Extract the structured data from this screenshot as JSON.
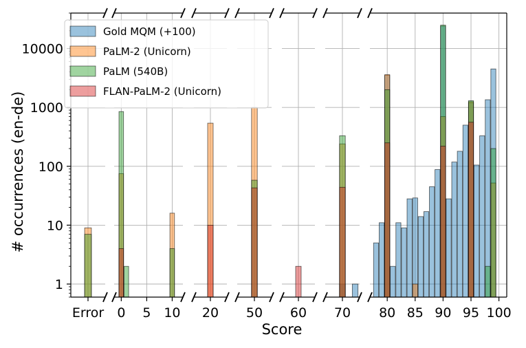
{
  "chart_data": {
    "type": "bar",
    "ylabel": "# occurrences (en-de)",
    "xlabel": "Score",
    "y_scale": "log",
    "grid": true,
    "legend_position": "top-left",
    "ylim": [
      0.6,
      40000
    ],
    "y_ticks": [
      {
        "v": 1,
        "label": "1"
      },
      {
        "v": 10,
        "label": "10"
      },
      {
        "v": 100,
        "label": "100"
      },
      {
        "v": 1000,
        "label": "1000"
      },
      {
        "v": 10000,
        "label": "10000"
      }
    ],
    "panels": [
      {
        "range": [
          -1.4,
          1.4
        ],
        "ticks": [
          {
            "v": 0,
            "label": "Error"
          }
        ]
      },
      {
        "range": [
          -1.4,
          12.1
        ],
        "ticks": [
          {
            "v": 0,
            "label": "0"
          },
          {
            "v": 5,
            "label": "5"
          },
          {
            "v": 10,
            "label": "10"
          }
        ]
      },
      {
        "range": [
          17.3,
          22.7
        ],
        "ticks": [
          {
            "v": 20,
            "label": "20"
          }
        ]
      },
      {
        "range": [
          47.3,
          52.7
        ],
        "ticks": [
          {
            "v": 50,
            "label": "50"
          }
        ]
      },
      {
        "range": [
          57.3,
          62.7
        ],
        "ticks": [
          {
            "v": 60,
            "label": "60"
          }
        ]
      },
      {
        "range": [
          67.3,
          72.7
        ],
        "ticks": [
          {
            "v": 70,
            "label": "70"
          }
        ]
      },
      {
        "range": [
          76.9,
          101.4
        ],
        "ticks": [
          {
            "v": 80,
            "label": "80"
          },
          {
            "v": 85,
            "label": "85"
          },
          {
            "v": 90,
            "label": "90"
          },
          {
            "v": 95,
            "label": "95"
          },
          {
            "v": 100,
            "label": "100"
          }
        ]
      }
    ],
    "series": [
      {
        "name": "Gold MQM (+100)",
        "color": "#1f77b4",
        "values": [
          {
            "panel": 5,
            "x": 70,
            "y": 1
          },
          {
            "panel": 5,
            "x": 72,
            "y": 1
          },
          {
            "panel": 6,
            "x": 78,
            "y": 5
          },
          {
            "panel": 6,
            "x": 79,
            "y": 11
          },
          {
            "panel": 6,
            "x": 80,
            "y": 3500
          },
          {
            "panel": 6,
            "x": 81,
            "y": 2
          },
          {
            "panel": 6,
            "x": 82,
            "y": 11
          },
          {
            "panel": 6,
            "x": 83,
            "y": 9
          },
          {
            "panel": 6,
            "x": 84,
            "y": 28
          },
          {
            "panel": 6,
            "x": 85,
            "y": 29
          },
          {
            "panel": 6,
            "x": 86,
            "y": 14
          },
          {
            "panel": 6,
            "x": 87,
            "y": 17
          },
          {
            "panel": 6,
            "x": 88,
            "y": 45
          },
          {
            "panel": 6,
            "x": 89,
            "y": 88
          },
          {
            "panel": 6,
            "x": 90,
            "y": 24000
          },
          {
            "panel": 6,
            "x": 91,
            "y": 28
          },
          {
            "panel": 6,
            "x": 92,
            "y": 118
          },
          {
            "panel": 6,
            "x": 93,
            "y": 180
          },
          {
            "panel": 6,
            "x": 94,
            "y": 500
          },
          {
            "panel": 6,
            "x": 95,
            "y": 1200
          },
          {
            "panel": 6,
            "x": 96,
            "y": 105
          },
          {
            "panel": 6,
            "x": 97,
            "y": 330
          },
          {
            "panel": 6,
            "x": 98,
            "y": 1350
          },
          {
            "panel": 6,
            "x": 99,
            "y": 4500
          }
        ]
      },
      {
        "name": "PaLM-2 (Unicorn)",
        "color": "#ff7f0e",
        "values": [
          {
            "panel": 0,
            "x": 0,
            "y": 9
          },
          {
            "panel": 1,
            "x": 0,
            "y": 75
          },
          {
            "panel": 1,
            "x": 10,
            "y": 16
          },
          {
            "panel": 2,
            "x": 20,
            "y": 540
          },
          {
            "panel": 3,
            "x": 50,
            "y": 1000
          },
          {
            "panel": 5,
            "x": 70,
            "y": 240
          },
          {
            "panel": 6,
            "x": 80,
            "y": 3600
          },
          {
            "panel": 6,
            "x": 85,
            "y": 1
          },
          {
            "panel": 6,
            "x": 90,
            "y": 700
          },
          {
            "panel": 6,
            "x": 95,
            "y": 1250
          },
          {
            "panel": 6,
            "x": 99,
            "y": 52
          }
        ]
      },
      {
        "name": "PaLM (540B)",
        "color": "#2ca02c",
        "values": [
          {
            "panel": 0,
            "x": 0,
            "y": 7
          },
          {
            "panel": 1,
            "x": 0,
            "y": 850
          },
          {
            "panel": 1,
            "x": 1,
            "y": 2
          },
          {
            "panel": 1,
            "x": 10,
            "y": 4
          },
          {
            "panel": 3,
            "x": 50,
            "y": 58
          },
          {
            "panel": 5,
            "x": 70,
            "y": 330
          },
          {
            "panel": 6,
            "x": 80,
            "y": 2000
          },
          {
            "panel": 6,
            "x": 90,
            "y": 25000
          },
          {
            "panel": 6,
            "x": 95,
            "y": 1300
          },
          {
            "panel": 6,
            "x": 98,
            "y": 2
          },
          {
            "panel": 6,
            "x": 99,
            "y": 200
          }
        ]
      },
      {
        "name": "FLAN-PaLM-2 (Unicorn)",
        "color": "#d62728",
        "values": [
          {
            "panel": 1,
            "x": 0,
            "y": 4
          },
          {
            "panel": 2,
            "x": 20,
            "y": 10
          },
          {
            "panel": 3,
            "x": 50,
            "y": 43
          },
          {
            "panel": 4,
            "x": 60,
            "y": 2
          },
          {
            "panel": 5,
            "x": 70,
            "y": 44
          },
          {
            "panel": 6,
            "x": 80,
            "y": 250
          },
          {
            "panel": 6,
            "x": 90,
            "y": 220
          },
          {
            "panel": 6,
            "x": 95,
            "y": 560
          }
        ]
      }
    ]
  }
}
